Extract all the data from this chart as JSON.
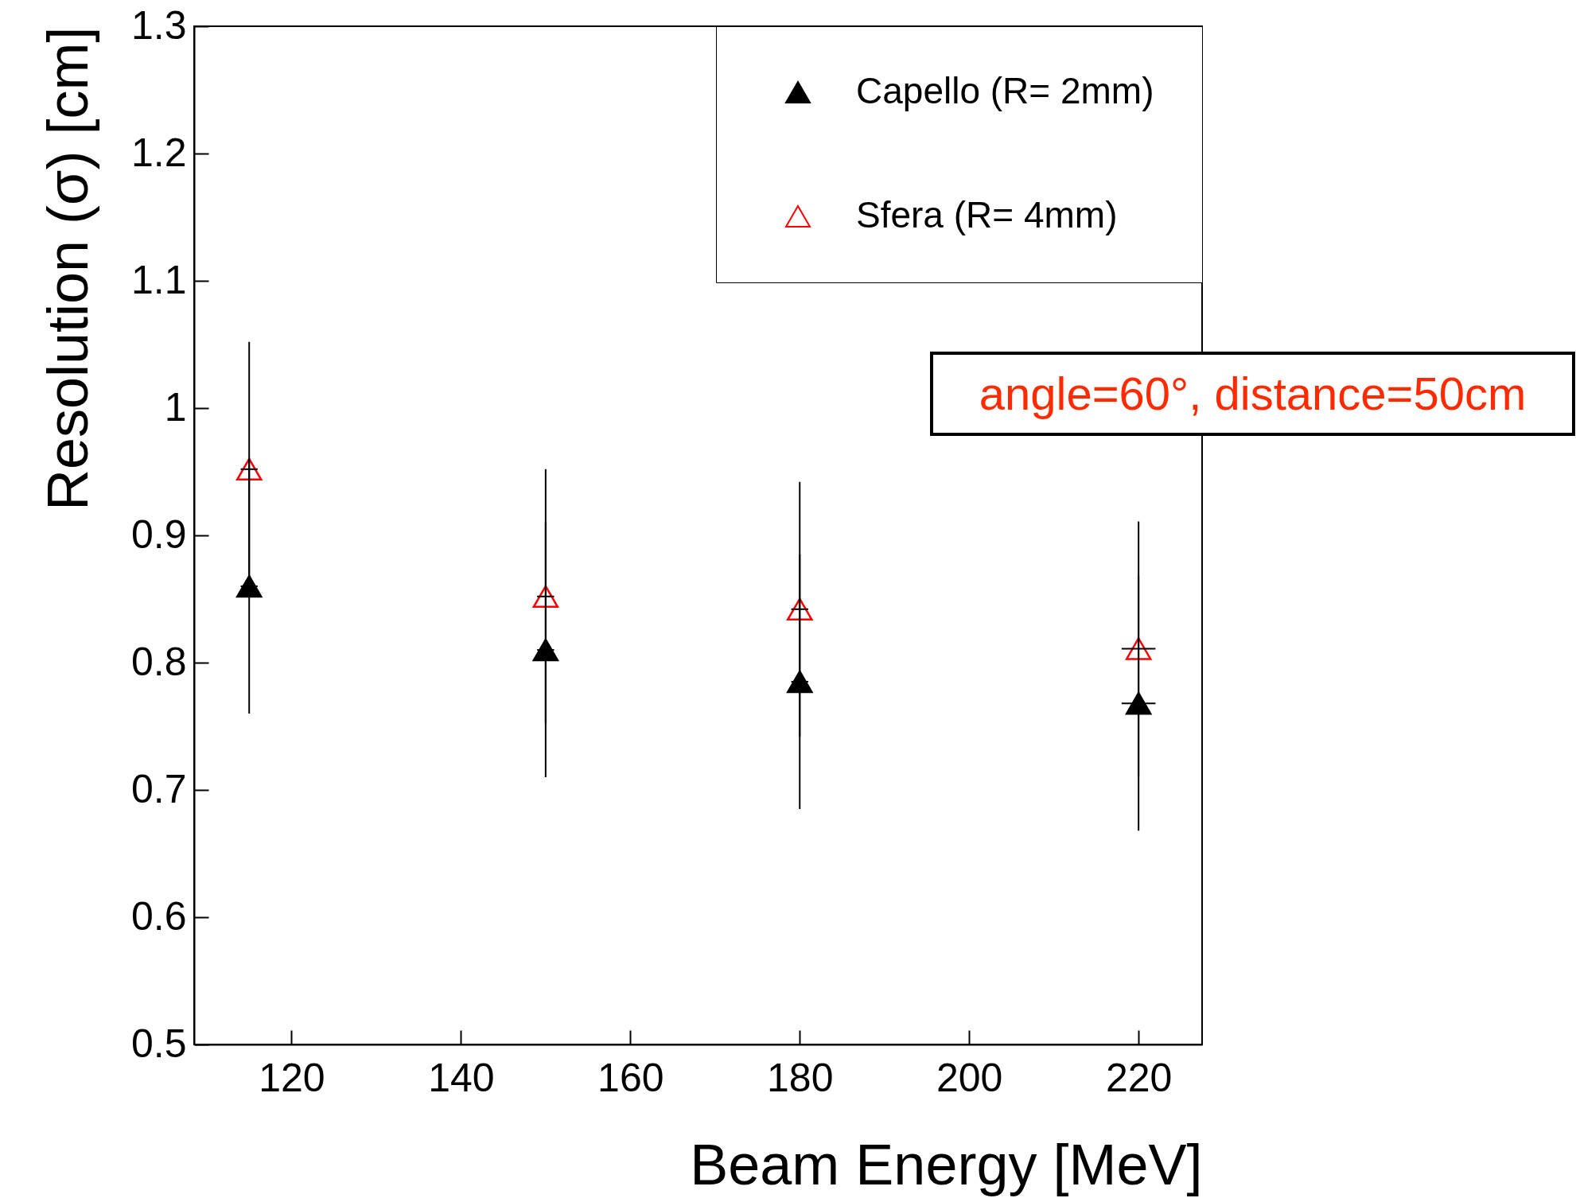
{
  "chart_data": {
    "type": "scatter",
    "xlabel": "Beam Energy [MeV]",
    "ylabel": "Resolution (σ) [cm]",
    "x": [
      115,
      150,
      180,
      220
    ],
    "series": [
      {
        "name": "Capello (R= 2mm)",
        "color": "#000000",
        "marker": "triangle",
        "values": [
          0.86,
          0.81,
          0.785,
          0.768
        ],
        "errors": [
          0.1,
          0.1,
          0.1,
          0.1
        ],
        "xerrors": [
          1,
          1,
          1,
          2
        ]
      },
      {
        "name": "Sfera (R= 4mm)",
        "color": "#ff0000",
        "marker": "triangle",
        "values": [
          0.952,
          0.852,
          0.842,
          0.811
        ],
        "errors": [
          0.1,
          0.1,
          0.1,
          0.1
        ],
        "xerrors": [
          1,
          1,
          1,
          2
        ]
      }
    ],
    "xlim": [
      108.5,
      227.5
    ],
    "xticks": [
      120,
      140,
      160,
      180,
      200,
      220
    ],
    "ylim": [
      0.5,
      1.3
    ],
    "yticks": [
      0.5,
      0.6,
      0.7,
      0.8,
      0.9,
      1,
      1.1,
      1.2,
      1.3
    ],
    "grid": false,
    "legend": "top right",
    "annotations": [
      "angle=60°, distance=50cm"
    ]
  }
}
